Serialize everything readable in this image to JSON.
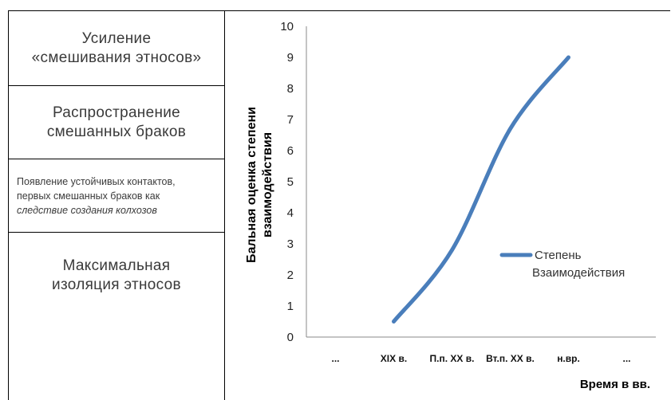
{
  "stages": [
    {
      "line1": "Усиление",
      "line2": "«смешивания этносов»"
    },
    {
      "line1": "Распространение",
      "line2": "смешанных браков"
    },
    {
      "line1": "Появление устойчивых контактов,",
      "line2": "первых смешанных браков как",
      "line3": "следствие создания колхозов"
    },
    {
      "line1": "Максимальная",
      "line2": "изоляция этносов"
    }
  ],
  "chart_data": {
    "type": "line",
    "categories": [
      "...",
      "XIX в.",
      "П.п. XX в.",
      "Вт.п. XX в.",
      "н.вр.",
      "..."
    ],
    "series": [
      {
        "name_line1": "Степень",
        "name_line2": "Взаимодействия",
        "color": "#4a7ebb",
        "values": [
          null,
          0.5,
          2.8,
          6.7,
          9.0,
          null
        ]
      }
    ],
    "ylim": [
      0,
      10
    ],
    "yticks": [
      0,
      1,
      2,
      3,
      4,
      5,
      6,
      7,
      8,
      9,
      10
    ],
    "ylabel_line1": "Бальная оценка степени",
    "ylabel_line2": "взаимодействия",
    "xlabel": "Время в вв.",
    "legend_position": "right",
    "smooth": true
  }
}
